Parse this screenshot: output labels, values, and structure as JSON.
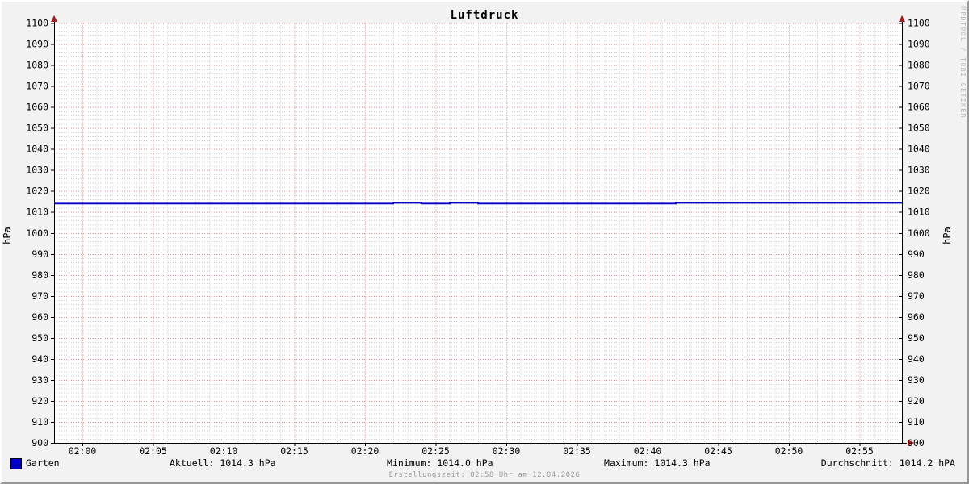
{
  "chart_data": {
    "type": "line",
    "title": "Luftdruck",
    "ylabel_left": "hPa",
    "ylabel_right": "hPa",
    "ylim": [
      900,
      1100
    ],
    "y_major_step": 10,
    "y_minor_step": 2,
    "x_start": "01:58",
    "x_end": "02:58",
    "x_major_ticks": [
      "02:00",
      "02:05",
      "02:10",
      "02:15",
      "02:20",
      "02:25",
      "02:30",
      "02:35",
      "02:40",
      "02:45",
      "02:50",
      "02:55"
    ],
    "x_minor_step_minutes": 1,
    "grid": true,
    "legend_position": "bottom-left",
    "series": [
      {
        "name": "Garten",
        "color": "#0000c8",
        "step_points": [
          [
            "01:58",
            1014.0
          ],
          [
            "02:22",
            1014.3
          ],
          [
            "02:24",
            1014.0
          ],
          [
            "02:26",
            1014.3
          ],
          [
            "02:28",
            1014.0
          ],
          [
            "02:42",
            1014.3
          ],
          [
            "02:58",
            1014.3
          ]
        ]
      }
    ]
  },
  "legend": {
    "series_label": "Garten",
    "swatch_color": "#0000c8"
  },
  "stats": {
    "aktuell": {
      "label": "Aktuell:",
      "value": "1014.3 hPa"
    },
    "minimum": {
      "label": "Minimum:",
      "value": "1014.0 hPa"
    },
    "maximum": {
      "label": "Maximum:",
      "value": "1014.3 hPa"
    },
    "durchschnitt": {
      "label": "Durchschnitt:",
      "value": "1014.2 hPA"
    }
  },
  "footer": {
    "creation_text": "Erstellungszeit: 02:58 Uhr am 12.04.2026"
  },
  "watermark": "RRDTOOL / TOBI OETIKER",
  "colors": {
    "background": "#f2f2f2",
    "plot_background": "#ffffff",
    "major_grid": "#dd8888",
    "minor_grid": "#cccccc",
    "axis": "#000000",
    "arrow": "#a02020",
    "line": "#0000c8",
    "text": "#000000",
    "muted_text": "#9a9a9a",
    "watermark_text": "#b8b8b8"
  }
}
